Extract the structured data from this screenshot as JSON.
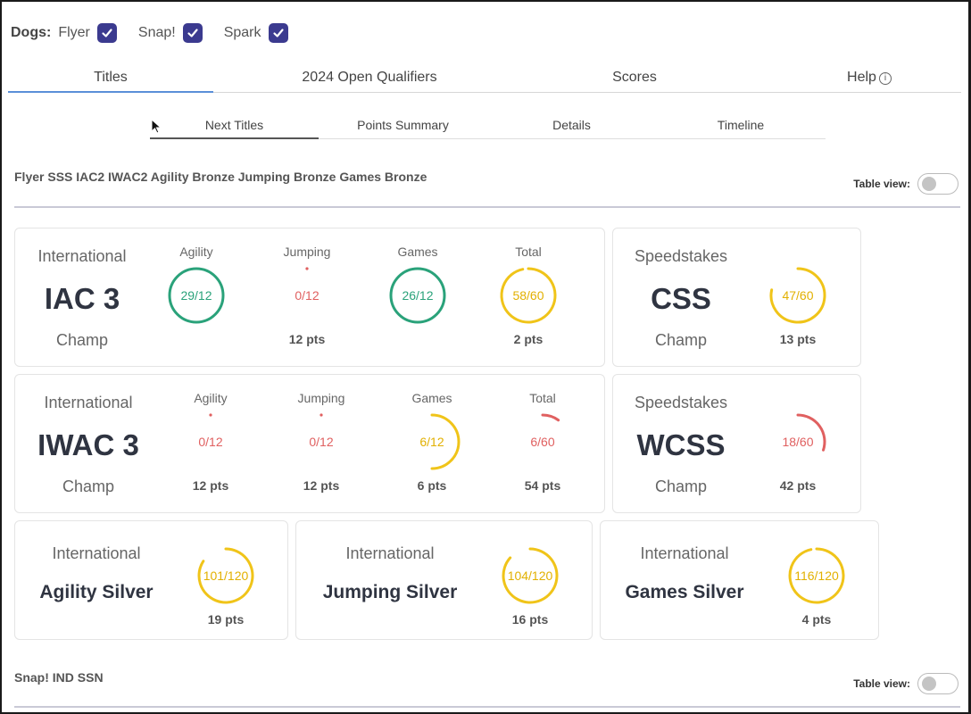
{
  "dogs": {
    "label": "Dogs:",
    "items": [
      {
        "name": "Flyer",
        "checked": true
      },
      {
        "name": "Snap!",
        "checked": true
      },
      {
        "name": "Spark",
        "checked": true
      }
    ]
  },
  "tabs": [
    {
      "label": "Titles",
      "active": true
    },
    {
      "label": "2024 Open Qualifiers",
      "active": false
    },
    {
      "label": "Scores",
      "active": false
    },
    {
      "label": "Help",
      "active": false
    }
  ],
  "subtabs": [
    {
      "label": "Next Titles",
      "active": true
    },
    {
      "label": "Points Summary",
      "active": false
    },
    {
      "label": "Details",
      "active": false
    },
    {
      "label": "Timeline",
      "active": false
    }
  ],
  "colors": {
    "green": "#2aa27a",
    "yellow": "#f0c419",
    "red": "#e06060",
    "track": "#f1f1f1",
    "checkbox": "#3b3a8f"
  },
  "sections": [
    {
      "title": "Flyer SSS IAC2 IWAC2 Agility Bronze Jumping Bronze Games Bronze",
      "table_view_label": "Table view:",
      "table_view_on": false,
      "cards": [
        {
          "kind": "International",
          "title": "IAC 3",
          "level": "Champ",
          "metrics": [
            {
              "label": "Agility",
              "value": 29,
              "max": 12,
              "text": "29/12",
              "color": "green",
              "pts": ""
            },
            {
              "label": "Jumping",
              "value": 0,
              "max": 12,
              "text": "0/12",
              "color": "red",
              "pts": "12 pts"
            },
            {
              "label": "Games",
              "value": 26,
              "max": 12,
              "text": "26/12",
              "color": "green",
              "pts": ""
            },
            {
              "label": "Total",
              "value": 58,
              "max": 60,
              "text": "58/60",
              "color": "yellow",
              "pts": "2 pts"
            }
          ]
        },
        {
          "kind": "Speedstakes",
          "title": "CSS",
          "level": "Champ",
          "metrics": [
            {
              "label": "",
              "value": 47,
              "max": 60,
              "text": "47/60",
              "color": "yellow",
              "pts": "13 pts"
            }
          ]
        },
        {
          "kind": "International",
          "title": "IWAC 3",
          "level": "Champ",
          "metrics": [
            {
              "label": "Agility",
              "value": 0,
              "max": 12,
              "text": "0/12",
              "color": "red",
              "pts": "12 pts"
            },
            {
              "label": "Jumping",
              "value": 0,
              "max": 12,
              "text": "0/12",
              "color": "red",
              "pts": "12 pts"
            },
            {
              "label": "Games",
              "value": 6,
              "max": 12,
              "text": "6/12",
              "color": "yellow",
              "pts": "6 pts"
            },
            {
              "label": "Total",
              "value": 6,
              "max": 60,
              "text": "6/60",
              "color": "red",
              "pts": "54 pts"
            }
          ]
        },
        {
          "kind": "Speedstakes",
          "title": "WCSS",
          "level": "Champ",
          "metrics": [
            {
              "label": "",
              "value": 18,
              "max": 60,
              "text": "18/60",
              "color": "red",
              "pts": "42 pts"
            }
          ]
        },
        {
          "kind": "International",
          "title": "Agility Silver",
          "level": "",
          "metrics": [
            {
              "label": "",
              "value": 101,
              "max": 120,
              "text": "101/120",
              "color": "yellow",
              "pts": "19 pts"
            }
          ]
        },
        {
          "kind": "International",
          "title": "Jumping Silver",
          "level": "",
          "metrics": [
            {
              "label": "",
              "value": 104,
              "max": 120,
              "text": "104/120",
              "color": "yellow",
              "pts": "16 pts"
            }
          ]
        },
        {
          "kind": "International",
          "title": "Games Silver",
          "level": "",
          "metrics": [
            {
              "label": "",
              "value": 116,
              "max": 120,
              "text": "116/120",
              "color": "yellow",
              "pts": "4 pts"
            }
          ]
        }
      ]
    },
    {
      "title": "Snap! IND SSN",
      "table_view_label": "Table view:",
      "table_view_on": false,
      "cards": []
    }
  ]
}
